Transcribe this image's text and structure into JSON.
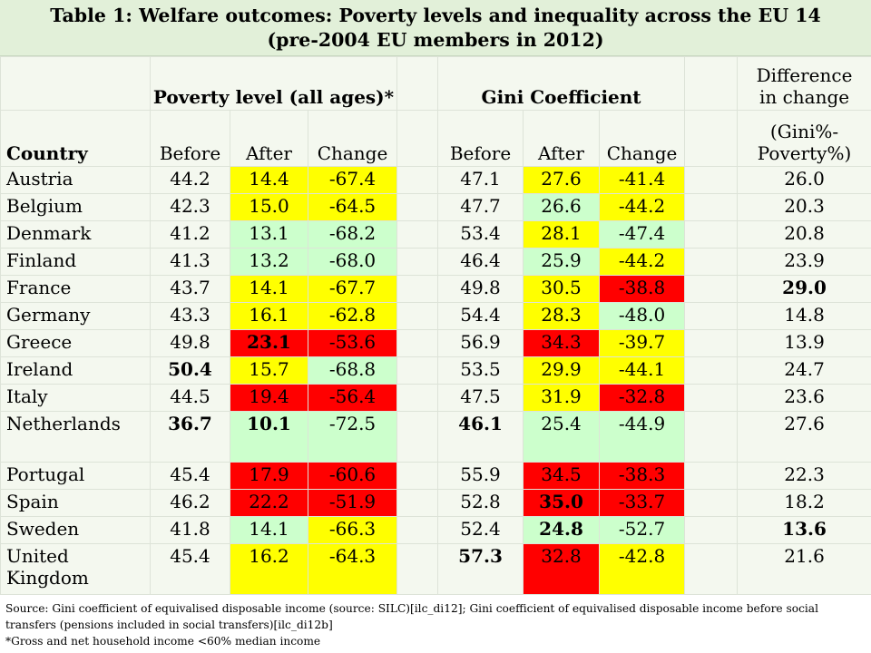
{
  "title": {
    "line1": "Table 1: Welfare outcomes: Poverty levels and inequality across the EU 14",
    "line2": "(pre-2004 EU members in 2012)"
  },
  "headers": {
    "poverty_group": "Poverty level (all ages)*",
    "gini_group": "Gini Coefficient",
    "diff_line1": "Difference",
    "diff_line2": "in change",
    "diff_line3": "(Gini%-",
    "diff_line4": "Poverty%)",
    "country": "Country",
    "before": "Before",
    "after": "After",
    "change": "Change"
  },
  "rows": [
    {
      "country": "Austria",
      "pb": "44.2",
      "pa": "14.4",
      "pc": "-67.4",
      "gb": "47.1",
      "ga": "27.6",
      "gc": "-41.4",
      "d": "26.0"
    },
    {
      "country": "Belgium",
      "pb": "42.3",
      "pa": "15.0",
      "pc": "-64.5",
      "gb": "47.7",
      "ga": "26.6",
      "gc": "-44.2",
      "d": "20.3"
    },
    {
      "country": "Denmark",
      "pb": "41.2",
      "pa": "13.1",
      "pc": "-68.2",
      "gb": "53.4",
      "ga": "28.1",
      "gc": "-47.4",
      "d": "20.8"
    },
    {
      "country": "Finland",
      "pb": "41.3",
      "pa": "13.2",
      "pc": "-68.0",
      "gb": "46.4",
      "ga": "25.9",
      "gc": "-44.2",
      "d": "23.9"
    },
    {
      "country": "France",
      "pb": "43.7",
      "pa": "14.1",
      "pc": "-67.7",
      "gb": "49.8",
      "ga": "30.5",
      "gc": "-38.8",
      "d": "29.0"
    },
    {
      "country": "Germany",
      "pb": "43.3",
      "pa": "16.1",
      "pc": "-62.8",
      "gb": "54.4",
      "ga": "28.3",
      "gc": "-48.0",
      "d": "14.8"
    },
    {
      "country": "Greece",
      "pb": "49.8",
      "pa": "23.1",
      "pc": "-53.6",
      "gb": "56.9",
      "ga": "34.3",
      "gc": "-39.7",
      "d": "13.9"
    },
    {
      "country": "Ireland",
      "pb": "50.4",
      "pa": "15.7",
      "pc": "-68.8",
      "gb": "53.5",
      "ga": "29.9",
      "gc": "-44.1",
      "d": "24.7"
    },
    {
      "country": "Italy",
      "pb": "44.5",
      "pa": "19.4",
      "pc": "-56.4",
      "gb": "47.5",
      "ga": "31.9",
      "gc": "-32.8",
      "d": "23.6"
    },
    {
      "country": "Netherlands",
      "pb": "36.7",
      "pa": "10.1",
      "pc": "-72.5",
      "gb": "46.1",
      "ga": "25.4",
      "gc": "-44.9",
      "d": "27.6"
    },
    {
      "country": "Portugal",
      "pb": "45.4",
      "pa": "17.9",
      "pc": "-60.6",
      "gb": "55.9",
      "ga": "34.5",
      "gc": "-38.3",
      "d": "22.3"
    },
    {
      "country": "Spain",
      "pb": "46.2",
      "pa": "22.2",
      "pc": "-51.9",
      "gb": "52.8",
      "ga": "35.0",
      "gc": "-33.7",
      "d": "18.2"
    },
    {
      "country": "Sweden",
      "pb": "41.8",
      "pa": "14.1",
      "pc": "-66.3",
      "gb": "52.4",
      "ga": "24.8",
      "gc": "-52.7",
      "d": "13.6"
    },
    {
      "country_line1": "United",
      "country_line2": "Kingdom",
      "pb": "45.4",
      "pa": "16.2",
      "pc": "-64.3",
      "gb": "57.3",
      "ga": "32.8",
      "gc": "-42.8",
      "d": "21.6"
    }
  ],
  "cell_colors": {
    "yellow": "#ffff00",
    "green": "#ccffcc",
    "red": "#ff0000",
    "background": "#f4f8ef",
    "title_background": "#e2f0d9"
  },
  "notes": {
    "source": "Source: Gini coefficient of equivalised disposable income (source: SILC)[ilc_di12]; Gini coefficient of equivalised disposable income before social transfers (pensions included in social transfers)[ilc_di12b]",
    "footnote": "*Gross  and net household income <60% median income"
  }
}
